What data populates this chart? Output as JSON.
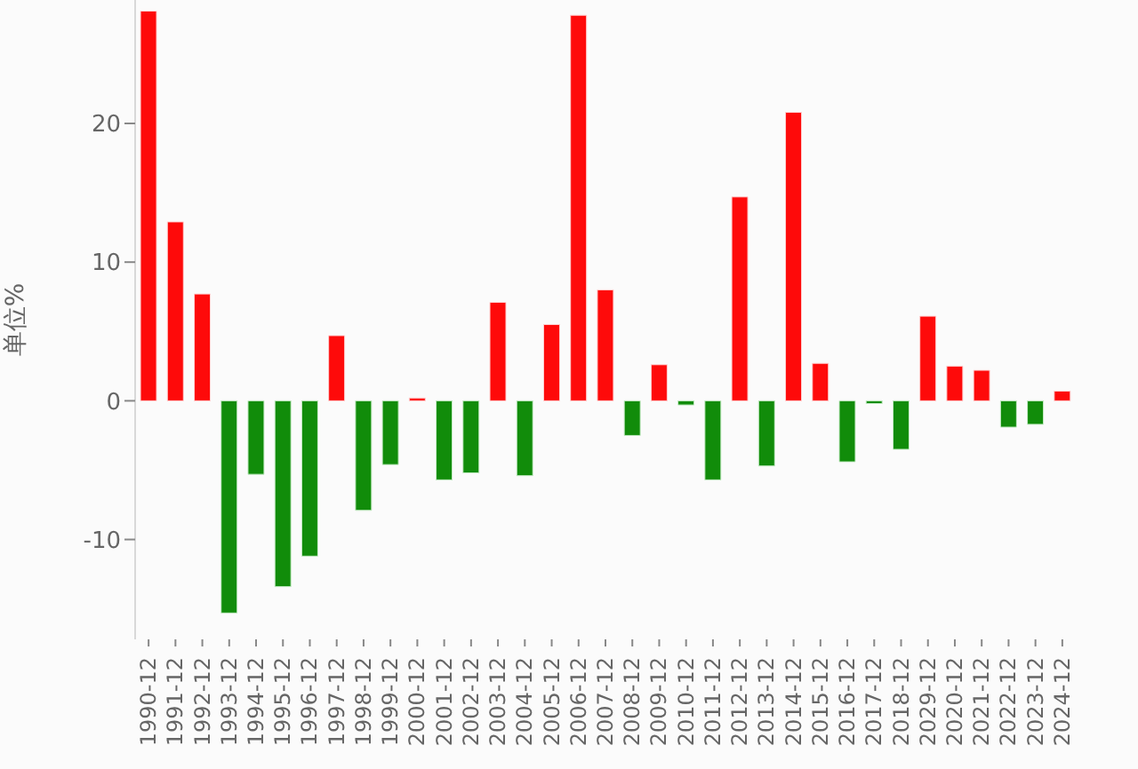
{
  "chart_data": {
    "type": "bar",
    "ylabel": "单位%",
    "categories": [
      "1990-12",
      "1991-12",
      "1992-12",
      "1993-12",
      "1994-12",
      "1995-12",
      "1996-12",
      "1997-12",
      "1998-12",
      "1999-12",
      "2000-12",
      "2001-12",
      "2002-12",
      "2003-12",
      "2004-12",
      "2005-12",
      "2006-12",
      "2007-12",
      "2008-12",
      "2009-12",
      "2010-12",
      "2011-12",
      "2012-12",
      "2013-12",
      "2014-12",
      "2015-12",
      "2016-12",
      "2017-12",
      "2018-12",
      "2029-12",
      "2020-12",
      "2021-12",
      "2022-12",
      "2023-12",
      "2024-12"
    ],
    "values": [
      28.1,
      12.9,
      7.7,
      -15.3,
      -5.3,
      -13.4,
      -11.2,
      4.7,
      -7.9,
      -4.6,
      0.2,
      -5.7,
      -5.2,
      7.1,
      -5.4,
      5.5,
      27.8,
      8.0,
      -2.5,
      2.6,
      -0.3,
      -5.7,
      14.7,
      -4.7,
      20.8,
      2.7,
      -4.4,
      -0.2,
      -3.5,
      6.1,
      2.5,
      2.2,
      -1.9,
      -1.7,
      0.7
    ],
    "colors": [
      "#fe0a0a",
      "#fe0a0a",
      "#fe0a0a",
      "#118c0a",
      "#118c0a",
      "#118c0a",
      "#118c0a",
      "#fe0a0a",
      "#118c0a",
      "#118c0a",
      "#fe0a0a",
      "#118c0a",
      "#118c0a",
      "#fe0a0a",
      "#118c0a",
      "#fe0a0a",
      "#fe0a0a",
      "#fe0a0a",
      "#118c0a",
      "#fe0a0a",
      "#118c0a",
      "#118c0a",
      "#fe0a0a",
      "#118c0a",
      "#fe0a0a",
      "#fe0a0a",
      "#118c0a",
      "#118c0a",
      "#118c0a",
      "#fe0a0a",
      "#fe0a0a",
      "#fe0a0a",
      "#118c0a",
      "#118c0a",
      "#fe0a0a"
    ],
    "ylim": [
      -17.2,
      28.9
    ],
    "yticks": [
      -10,
      0,
      10,
      20
    ],
    "grid": false,
    "legend": false
  }
}
